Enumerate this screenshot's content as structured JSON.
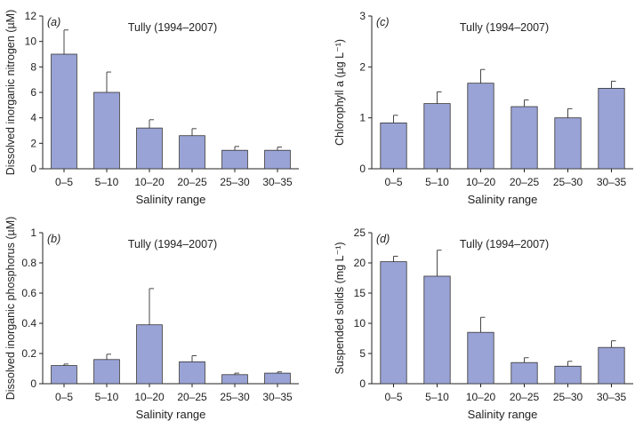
{
  "colors": {
    "bar_fill": "#9aa3d6",
    "bar_stroke": "#333333",
    "axis": "#222222"
  },
  "chart_data": [
    {
      "panel_label": "(a)",
      "type": "bar",
      "title": "Tully (1994–2007)",
      "xlabel": "Salinity range",
      "ylabel": "Dissolved inorganic nitrogen (µM)",
      "categories": [
        "0–5",
        "5–10",
        "10–20",
        "20–25",
        "25–30",
        "30–35"
      ],
      "values": [
        9.0,
        6.0,
        3.2,
        2.6,
        1.45,
        1.45
      ],
      "errors": [
        1.9,
        1.6,
        0.65,
        0.55,
        0.3,
        0.25
      ],
      "ylim": [
        0,
        12
      ],
      "yticks": [
        0,
        2,
        4,
        6,
        8,
        10,
        12
      ],
      "ytick_labels": [
        "0",
        "2",
        "4",
        "6",
        "8",
        "10",
        "12"
      ],
      "grid": false
    },
    {
      "panel_label": "(c)",
      "type": "bar",
      "title": "Tully (1994–2007)",
      "xlabel": "Salinity range",
      "ylabel": "Chlorophyll a (µg L⁻¹)",
      "categories": [
        "0–5",
        "5–10",
        "10–20",
        "20–25",
        "25–30",
        "30–35"
      ],
      "values": [
        0.9,
        1.28,
        1.68,
        1.22,
        1.0,
        1.58
      ],
      "errors": [
        0.15,
        0.23,
        0.27,
        0.13,
        0.18,
        0.14
      ],
      "ylim": [
        0,
        3
      ],
      "yticks": [
        0,
        1,
        2,
        3
      ],
      "ytick_labels": [
        "0",
        "1",
        "2",
        "3"
      ],
      "grid": false
    },
    {
      "panel_label": "(b)",
      "type": "bar",
      "title": "Tully (1994–2007)",
      "xlabel": "Salinity range",
      "ylabel": "Dissolved inorganic phosphorus (µM)",
      "categories": [
        "0–5",
        "5–10",
        "10–20",
        "20–25",
        "25–30",
        "30–35"
      ],
      "values": [
        0.12,
        0.16,
        0.39,
        0.145,
        0.06,
        0.07
      ],
      "errors": [
        0.01,
        0.035,
        0.24,
        0.04,
        0.01,
        0.008
      ],
      "ylim": [
        0,
        1
      ],
      "yticks": [
        0,
        0.2,
        0.4,
        0.6,
        0.8,
        1
      ],
      "ytick_labels": [
        "0",
        "0.2",
        "0.4",
        "0.6",
        "0.8",
        "1"
      ],
      "grid": false
    },
    {
      "panel_label": "(d)",
      "type": "bar",
      "title": "Tully (1994–2007)",
      "xlabel": "Salinity range",
      "ylabel": "Suspended solids (mg L⁻¹)",
      "categories": [
        "0–5",
        "5–10",
        "10–20",
        "20–25",
        "25–30",
        "30–35"
      ],
      "values": [
        20.2,
        17.8,
        8.5,
        3.5,
        2.9,
        6.0
      ],
      "errors": [
        0.9,
        4.3,
        2.5,
        0.8,
        0.8,
        1.1
      ],
      "ylim": [
        0,
        25
      ],
      "yticks": [
        0,
        5,
        10,
        15,
        20,
        25
      ],
      "ytick_labels": [
        "0",
        "5",
        "10",
        "15",
        "20",
        "25"
      ],
      "grid": false
    }
  ]
}
